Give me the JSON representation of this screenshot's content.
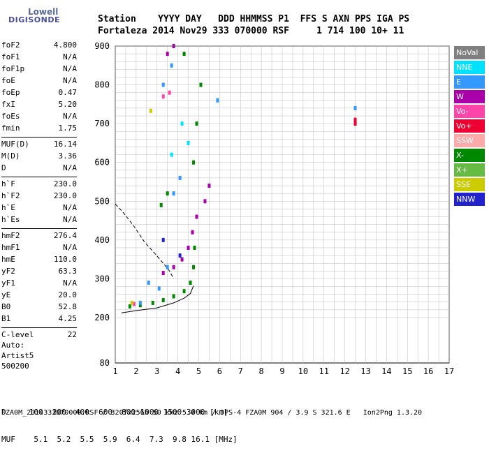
{
  "logo": {
    "line1": "Lowell",
    "line2": "DIGISONDE"
  },
  "header": {
    "row1": "Station    YYYY DAY   DDD HHMMSS P1  FFS S AXN PPS IGA PS",
    "row2": "Fortaleza 2014 Nov29 333 070000 RSF     1 714 100 10+ 11"
  },
  "params_group1": [
    {
      "name": "foF2",
      "value": "4.800"
    },
    {
      "name": "foF1",
      "value": "N/A"
    },
    {
      "name": "foF1p",
      "value": "N/A"
    },
    {
      "name": "foE",
      "value": "N/A"
    },
    {
      "name": "foEp",
      "value": "0.47"
    },
    {
      "name": "fxI",
      "value": "5.20"
    },
    {
      "name": "foEs",
      "value": "N/A"
    },
    {
      "name": "fmin",
      "value": "1.75"
    }
  ],
  "params_group2": [
    {
      "name": "MUF(D)",
      "value": "16.14"
    },
    {
      "name": "M(D)",
      "value": "3.36"
    },
    {
      "name": "D",
      "value": "N/A"
    }
  ],
  "params_group3": [
    {
      "name": "h`F",
      "value": "230.0"
    },
    {
      "name": "h`F2",
      "value": "230.0"
    },
    {
      "name": "h`E",
      "value": "N/A"
    },
    {
      "name": "h`Es",
      "value": "N/A"
    }
  ],
  "params_group4": [
    {
      "name": "hmF2",
      "value": "276.4"
    },
    {
      "name": "hmF1",
      "value": "N/A"
    },
    {
      "name": "hmE",
      "value": "110.0"
    },
    {
      "name": "yF2",
      "value": "63.3"
    },
    {
      "name": "yF1",
      "value": "N/A"
    },
    {
      "name": "yE",
      "value": "20.0"
    },
    {
      "name": "B0",
      "value": "52.8"
    },
    {
      "name": "B1",
      "value": "4.25"
    }
  ],
  "params_group5": [
    {
      "name": "C-level",
      "value": "22"
    }
  ],
  "auto": {
    "l1": "Auto:",
    "l2": "Artist5",
    "l3": "500200"
  },
  "legend": [
    {
      "label": "NoVal",
      "color": "#808080"
    },
    {
      "label": "NNE",
      "color": "#00e0ff"
    },
    {
      "label": "E",
      "color": "#3399ff"
    },
    {
      "label": "W",
      "color": "#aa00aa"
    },
    {
      "label": "Vo-",
      "color": "#ff44aa"
    },
    {
      "label": "Vo+",
      "color": "#ee0033"
    },
    {
      "label": "SSW",
      "color": "#ffaaaa"
    },
    {
      "label": "X-",
      "color": "#008800"
    },
    {
      "label": "X+",
      "color": "#66bb44"
    },
    {
      "label": "SSE",
      "color": "#cccc00"
    },
    {
      "label": "NNW",
      "color": "#2222cc"
    }
  ],
  "footer": {
    "d_row": "D     100  200  400  600  800 1000 1500 3000 [km]",
    "muf_row": "MUF    5.1  5.2  5.5  5.9  6.4  7.3  9.8 16.1 [MHz]",
    "file": "FZA0M_2014333070000.RSF / 320fx256h 50 kHz 5.0 km / DPS-4 FZA0M 904 / 3.9 S 321.6 E   Ion2Png 1.3.20"
  },
  "chart_data": {
    "type": "scatter",
    "xlim": [
      1,
      17
    ],
    "ylim": [
      80,
      900
    ],
    "x_ticks": [
      1,
      2,
      3,
      4,
      5,
      6,
      7,
      8,
      9,
      10,
      11,
      12,
      13,
      14,
      15,
      16,
      17
    ],
    "y_ticks": [
      80,
      200,
      300,
      400,
      500,
      600,
      700,
      800,
      900
    ],
    "grid": true,
    "series": [
      {
        "name": "X-",
        "color": "#008800",
        "points": [
          [
            1.7,
            229
          ],
          [
            2.2,
            232
          ],
          [
            2.8,
            238
          ],
          [
            3.3,
            245
          ],
          [
            3.8,
            255
          ],
          [
            4.3,
            268
          ],
          [
            4.6,
            290
          ],
          [
            4.75,
            330
          ],
          [
            4.8,
            380
          ],
          [
            4.75,
            600
          ],
          [
            4.9,
            700
          ],
          [
            5.1,
            800
          ],
          [
            4.3,
            880
          ],
          [
            3.5,
            520
          ],
          [
            3.2,
            490
          ]
        ]
      },
      {
        "name": "W",
        "color": "#aa00aa",
        "points": [
          [
            3.3,
            315
          ],
          [
            3.8,
            330
          ],
          [
            4.2,
            350
          ],
          [
            4.5,
            380
          ],
          [
            4.7,
            420
          ],
          [
            4.9,
            460
          ],
          [
            5.3,
            500
          ],
          [
            5.5,
            540
          ],
          [
            3.5,
            880
          ],
          [
            3.8,
            900
          ]
        ]
      },
      {
        "name": "E",
        "color": "#3399ff",
        "points": [
          [
            2.2,
            238
          ],
          [
            2.6,
            290
          ],
          [
            3.1,
            275
          ],
          [
            3.5,
            330
          ],
          [
            3.8,
            520
          ],
          [
            4.1,
            560
          ],
          [
            3.3,
            800
          ],
          [
            3.7,
            850
          ],
          [
            5.9,
            760
          ],
          [
            12.5,
            740
          ]
        ]
      },
      {
        "name": "Vo+",
        "color": "#ee0033",
        "points": [
          [
            12.5,
            710
          ],
          [
            12.5,
            700
          ]
        ]
      },
      {
        "name": "Vo-",
        "color": "#ff44aa",
        "points": [
          [
            1.9,
            235
          ],
          [
            3.3,
            770
          ],
          [
            3.6,
            780
          ]
        ]
      },
      {
        "name": "NNE",
        "color": "#00e0ff",
        "points": [
          [
            3.7,
            620
          ],
          [
            4.2,
            700
          ],
          [
            4.5,
            650
          ]
        ]
      },
      {
        "name": "SSE",
        "color": "#cccc00",
        "points": [
          [
            2.7,
            733
          ],
          [
            1.8,
            238
          ]
        ]
      },
      {
        "name": "NNW",
        "color": "#2222cc",
        "points": [
          [
            3.3,
            400
          ],
          [
            4.1,
            360
          ]
        ]
      }
    ],
    "curves": [
      {
        "style": "solid",
        "points": [
          [
            1.3,
            212
          ],
          [
            2.0,
            218
          ],
          [
            3.0,
            225
          ],
          [
            3.8,
            238
          ],
          [
            4.3,
            250
          ],
          [
            4.6,
            262
          ],
          [
            4.75,
            282
          ]
        ]
      },
      {
        "style": "dashed",
        "points": [
          [
            1.0,
            493
          ],
          [
            1.4,
            470
          ],
          [
            1.9,
            435
          ],
          [
            2.4,
            395
          ],
          [
            2.9,
            365
          ],
          [
            3.3,
            340
          ],
          [
            3.6,
            320
          ],
          [
            3.8,
            300
          ]
        ]
      }
    ]
  }
}
